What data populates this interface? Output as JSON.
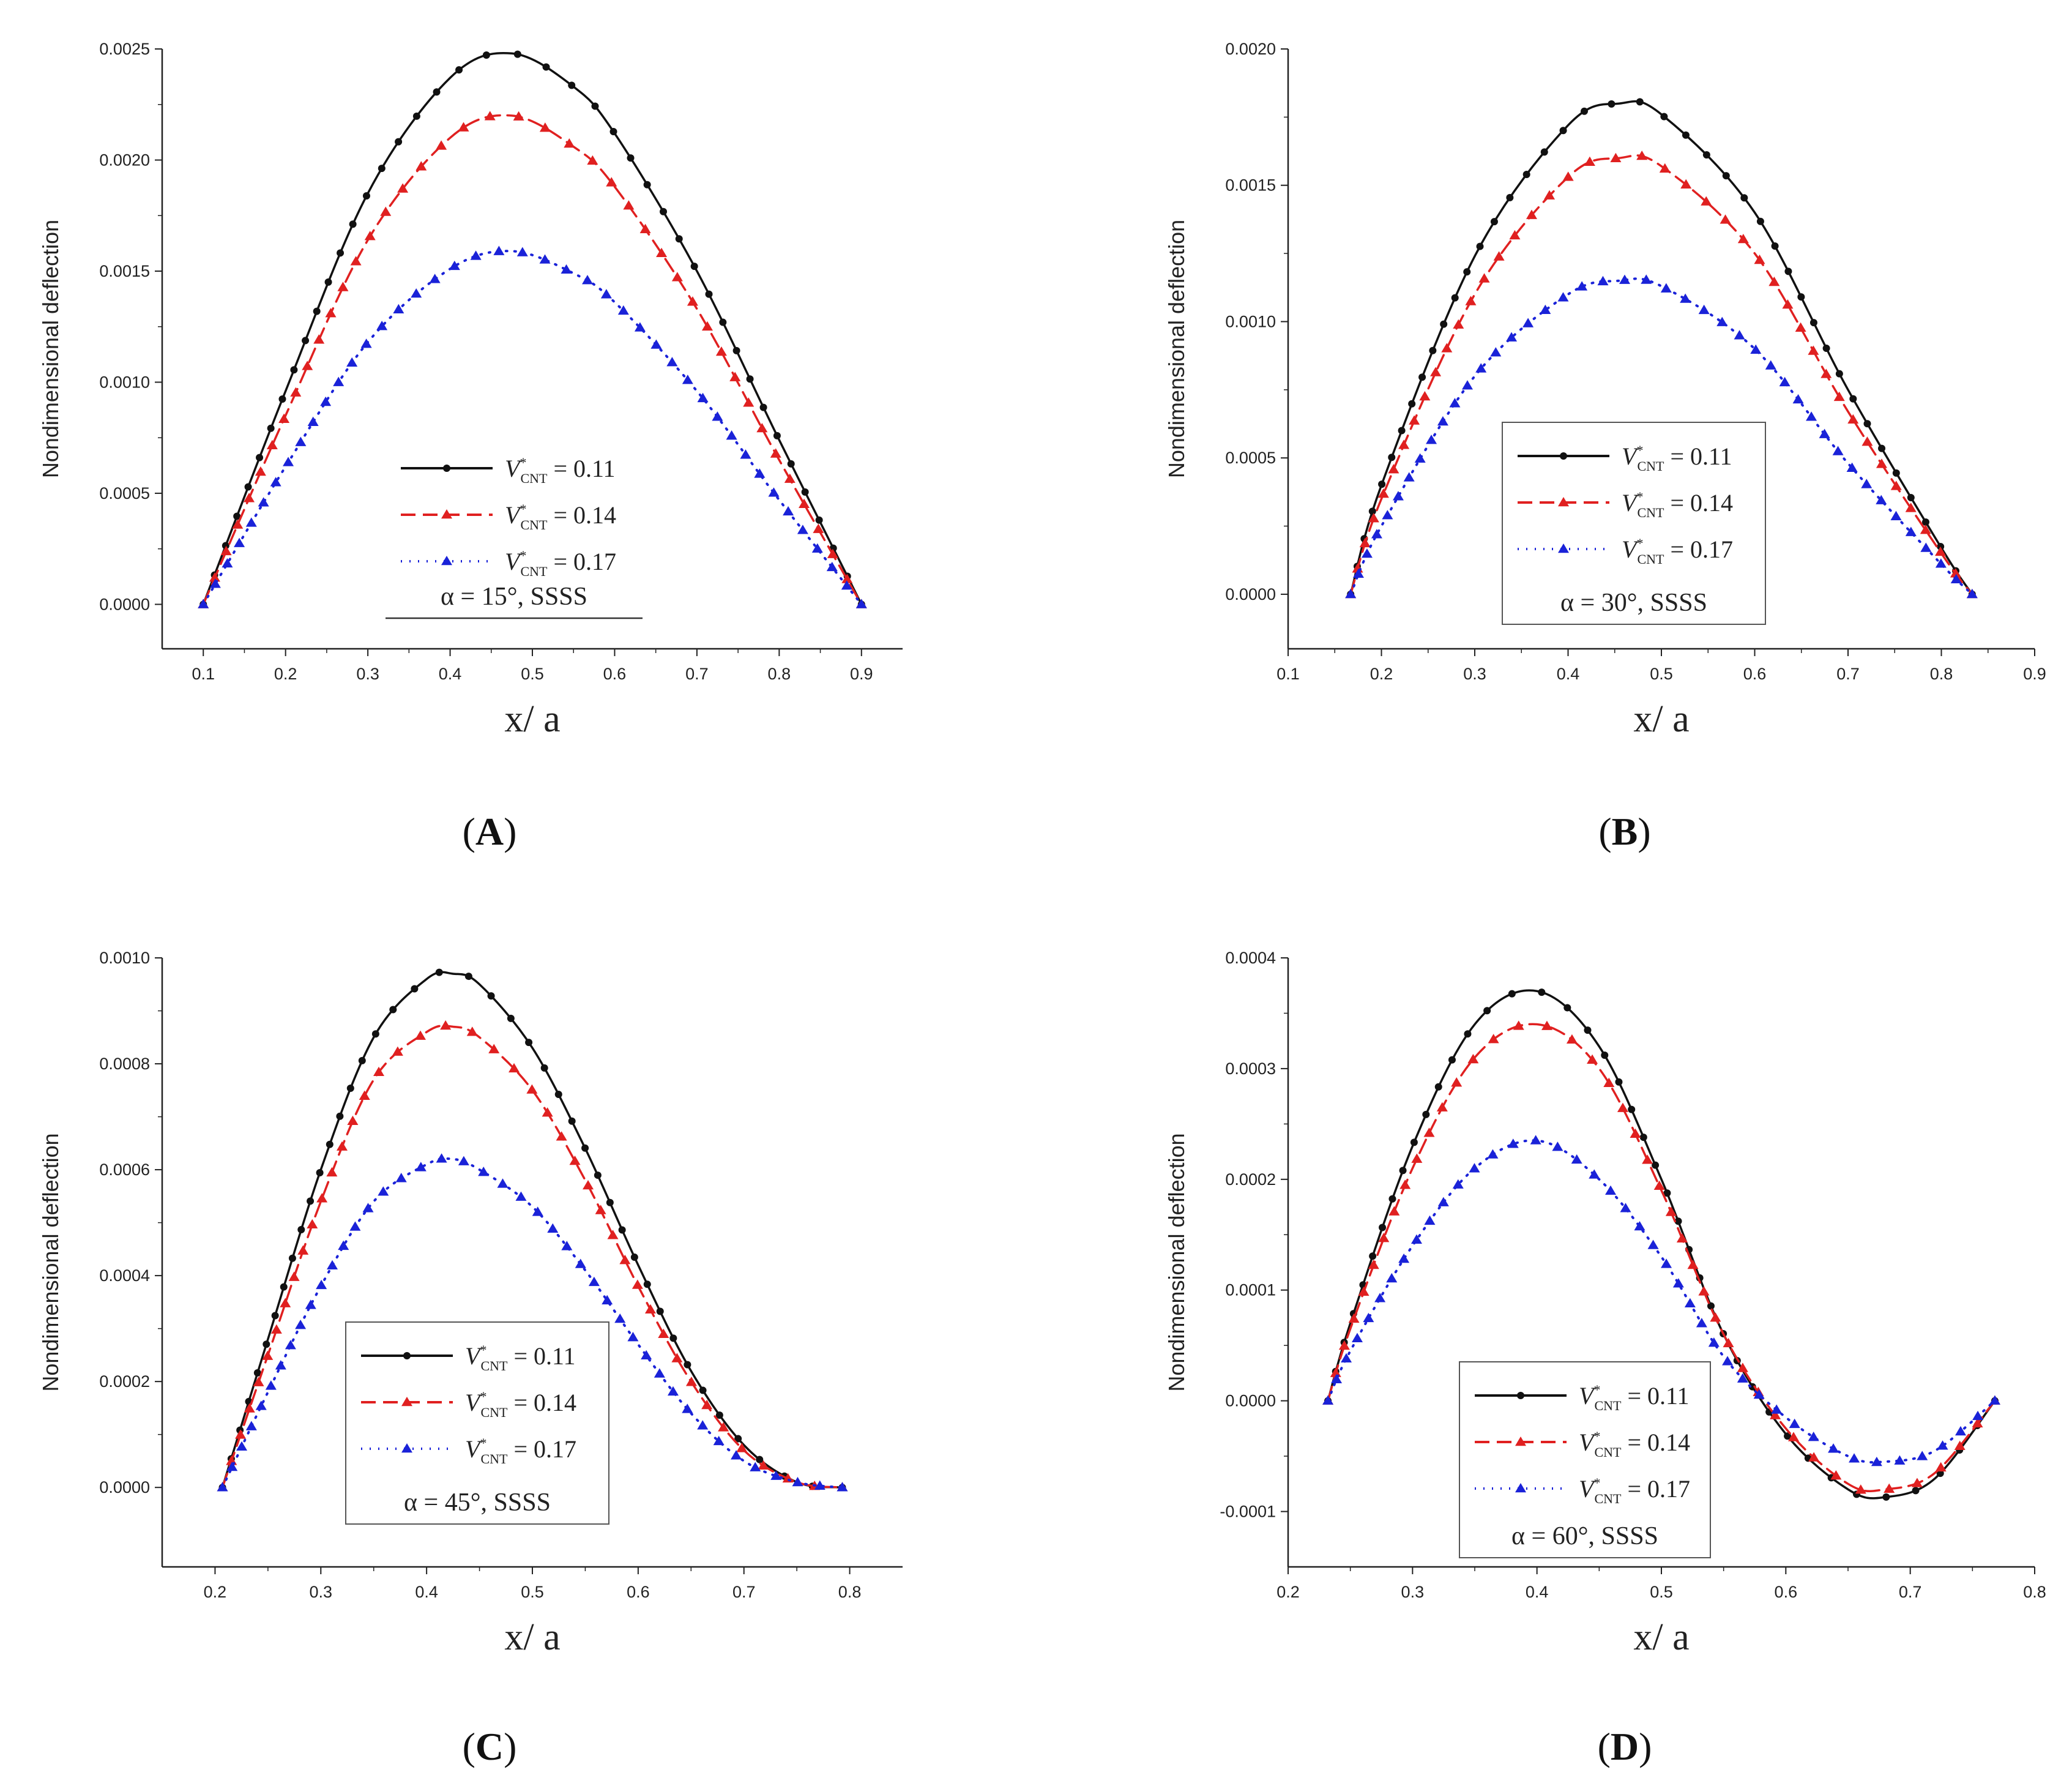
{
  "figure": {
    "panels": [
      "A",
      "B",
      "C",
      "D"
    ]
  },
  "chart_data": [
    {
      "panel_label": "(A)",
      "type": "line",
      "ylabel": "Nondimensional deflection",
      "xlabel": "x/ a",
      "xlim": [
        0.05,
        0.95
      ],
      "ylim": [
        -0.0002,
        0.0025
      ],
      "xticks": [
        "0.1",
        "0.2",
        "0.3",
        "0.4",
        "0.5",
        "0.6",
        "0.7",
        "0.8",
        "0.9"
      ],
      "yticks": [
        "0.0000",
        "0.0005",
        "0.0010",
        "0.0015",
        "0.0020",
        "0.0025"
      ],
      "legend_note": "α = 15°, SSSS",
      "legend_box": false,
      "x": [
        0.1,
        0.2,
        0.3,
        0.4,
        0.475,
        0.55,
        0.6,
        0.7,
        0.8,
        0.9
      ],
      "series": [
        {
          "name": "V*CNT = 0.11",
          "values": [
            0.0,
            0.00096,
            0.00185,
            0.00237,
            0.00248,
            0.00233,
            0.00212,
            0.0015,
            0.00074,
            0.0
          ]
        },
        {
          "name": "V*CNT = 0.14",
          "values": [
            0.0,
            0.00085,
            0.00164,
            0.0021,
            0.0022,
            0.00206,
            0.00188,
            0.00133,
            0.00065,
            0.0
          ]
        },
        {
          "name": "V*CNT = 0.17",
          "values": [
            0.0,
            0.00062,
            0.00118,
            0.00151,
            0.00159,
            0.00149,
            0.00136,
            0.00096,
            0.00047,
            0.0
          ]
        }
      ]
    },
    {
      "panel_label": "(B)",
      "type": "line",
      "ylabel": "Nondimensional deflection",
      "xlabel": "x/ a",
      "xlim": [
        0.1,
        0.9
      ],
      "ylim": [
        -0.0002,
        0.002
      ],
      "xticks": [
        "0.1",
        "0.2",
        "0.3",
        "0.4",
        "0.5",
        "0.6",
        "0.7",
        "0.8",
        "0.9"
      ],
      "yticks": [
        "0.0000",
        "0.0005",
        "0.0010",
        "0.0015",
        "0.0020"
      ],
      "legend_note": "α = 30°, SSSS",
      "legend_box": true,
      "x": [
        0.167,
        0.2,
        0.3,
        0.4,
        0.455,
        0.5,
        0.6,
        0.7,
        0.8,
        0.833
      ],
      "series": [
        {
          "name": "V*CNT = 0.11",
          "values": [
            0.0,
            0.0004,
            0.00124,
            0.00172,
            0.0018,
            0.00176,
            0.0014,
            0.00075,
            0.00017,
            0.0
          ]
        },
        {
          "name": "V*CNT = 0.14",
          "values": [
            0.0,
            0.00035,
            0.0011,
            0.00153,
            0.0016,
            0.00157,
            0.00125,
            0.00067,
            0.00015,
            0.0
          ]
        },
        {
          "name": "V*CNT = 0.17",
          "values": [
            0.0,
            0.00025,
            0.0008,
            0.0011,
            0.00115,
            0.00113,
            0.0009,
            0.00048,
            0.00011,
            0.0
          ]
        }
      ]
    },
    {
      "panel_label": "(C)",
      "type": "line",
      "ylabel": "Nondimensional deflection",
      "xlabel": "x/ a",
      "xlim": [
        0.15,
        0.85
      ],
      "ylim": [
        -0.00015,
        0.001
      ],
      "xticks": [
        "0.2",
        "0.3",
        "0.4",
        "0.5",
        "0.6",
        "0.7",
        "0.8"
      ],
      "yticks": [
        "0.0000",
        "0.0002",
        "0.0004",
        "0.0006",
        "0.0008",
        "0.0010"
      ],
      "legend_note": "α = 45°, SSSS",
      "legend_box": true,
      "x": [
        0.207,
        0.25,
        0.3,
        0.35,
        0.4,
        0.425,
        0.45,
        0.5,
        0.55,
        0.6,
        0.65,
        0.7,
        0.75,
        0.793
      ],
      "series": [
        {
          "name": "V*CNT = 0.11",
          "values": [
            0.0,
            0.00028,
            0.0006,
            0.00085,
            0.00096,
            0.00097,
            0.00095,
            0.00083,
            0.00064,
            0.00042,
            0.00022,
            8e-05,
            1e-05,
            0.0
          ]
        },
        {
          "name": "V*CNT = 0.14",
          "values": [
            0.0,
            0.00025,
            0.00054,
            0.00077,
            0.00086,
            0.00087,
            0.00085,
            0.00075,
            0.00058,
            0.00038,
            0.0002,
            7e-05,
            1e-05,
            0.0
          ]
        },
        {
          "name": "V*CNT = 0.17",
          "values": [
            0.0,
            0.00018,
            0.00038,
            0.00054,
            0.00061,
            0.00062,
            0.0006,
            0.00053,
            0.00041,
            0.00027,
            0.00014,
            5e-05,
            1e-05,
            0.0
          ]
        }
      ]
    },
    {
      "panel_label": "(D)",
      "type": "line",
      "ylabel": "Nondimensional deflection",
      "xlabel": "x/ a",
      "xlim": [
        0.2,
        0.8
      ],
      "ylim": [
        -0.00015,
        0.0004
      ],
      "xticks": [
        "0.2",
        "0.3",
        "0.4",
        "0.5",
        "0.6",
        "0.7",
        "0.8"
      ],
      "yticks": [
        "-0.0001",
        "0.0000",
        "0.0001",
        "0.0002",
        "0.0003",
        "0.0004"
      ],
      "legend_note": "α = 60°, SSSS",
      "legend_box": true,
      "x": [
        0.232,
        0.25,
        0.3,
        0.35,
        0.4,
        0.45,
        0.5,
        0.55,
        0.6,
        0.65,
        0.68,
        0.72,
        0.768
      ],
      "series": [
        {
          "name": "V*CNT = 0.11",
          "values": [
            0.0,
            7e-05,
            0.00023,
            0.00034,
            0.00037,
            0.00032,
            0.0002,
            6e-05,
            -3e-05,
            -8e-05,
            -8.7e-05,
            -7e-05,
            0.0
          ]
        },
        {
          "name": "V*CNT = 0.14",
          "values": [
            0.0,
            6.5e-05,
            0.00021,
            0.00031,
            0.00034,
            0.0003,
            0.00019,
            6e-05,
            -2.5e-05,
            -7.5e-05,
            -8e-05,
            -6.5e-05,
            0.0
          ]
        },
        {
          "name": "V*CNT = 0.17",
          "values": [
            0.0,
            4.5e-05,
            0.00014,
            0.00021,
            0.000235,
            0.0002,
            0.00013,
            4e-05,
            -1.5e-05,
            -5e-05,
            -5.5e-05,
            -4.5e-05,
            0.0
          ]
        }
      ]
    }
  ],
  "series_styles": [
    {
      "color": "#111111",
      "dash": "none",
      "marker": "circle"
    },
    {
      "color": "#e02020",
      "dash": "24,12",
      "marker": "triangle"
    },
    {
      "color": "#1a22d8",
      "dash": "2,12",
      "marker": "triangle"
    }
  ]
}
